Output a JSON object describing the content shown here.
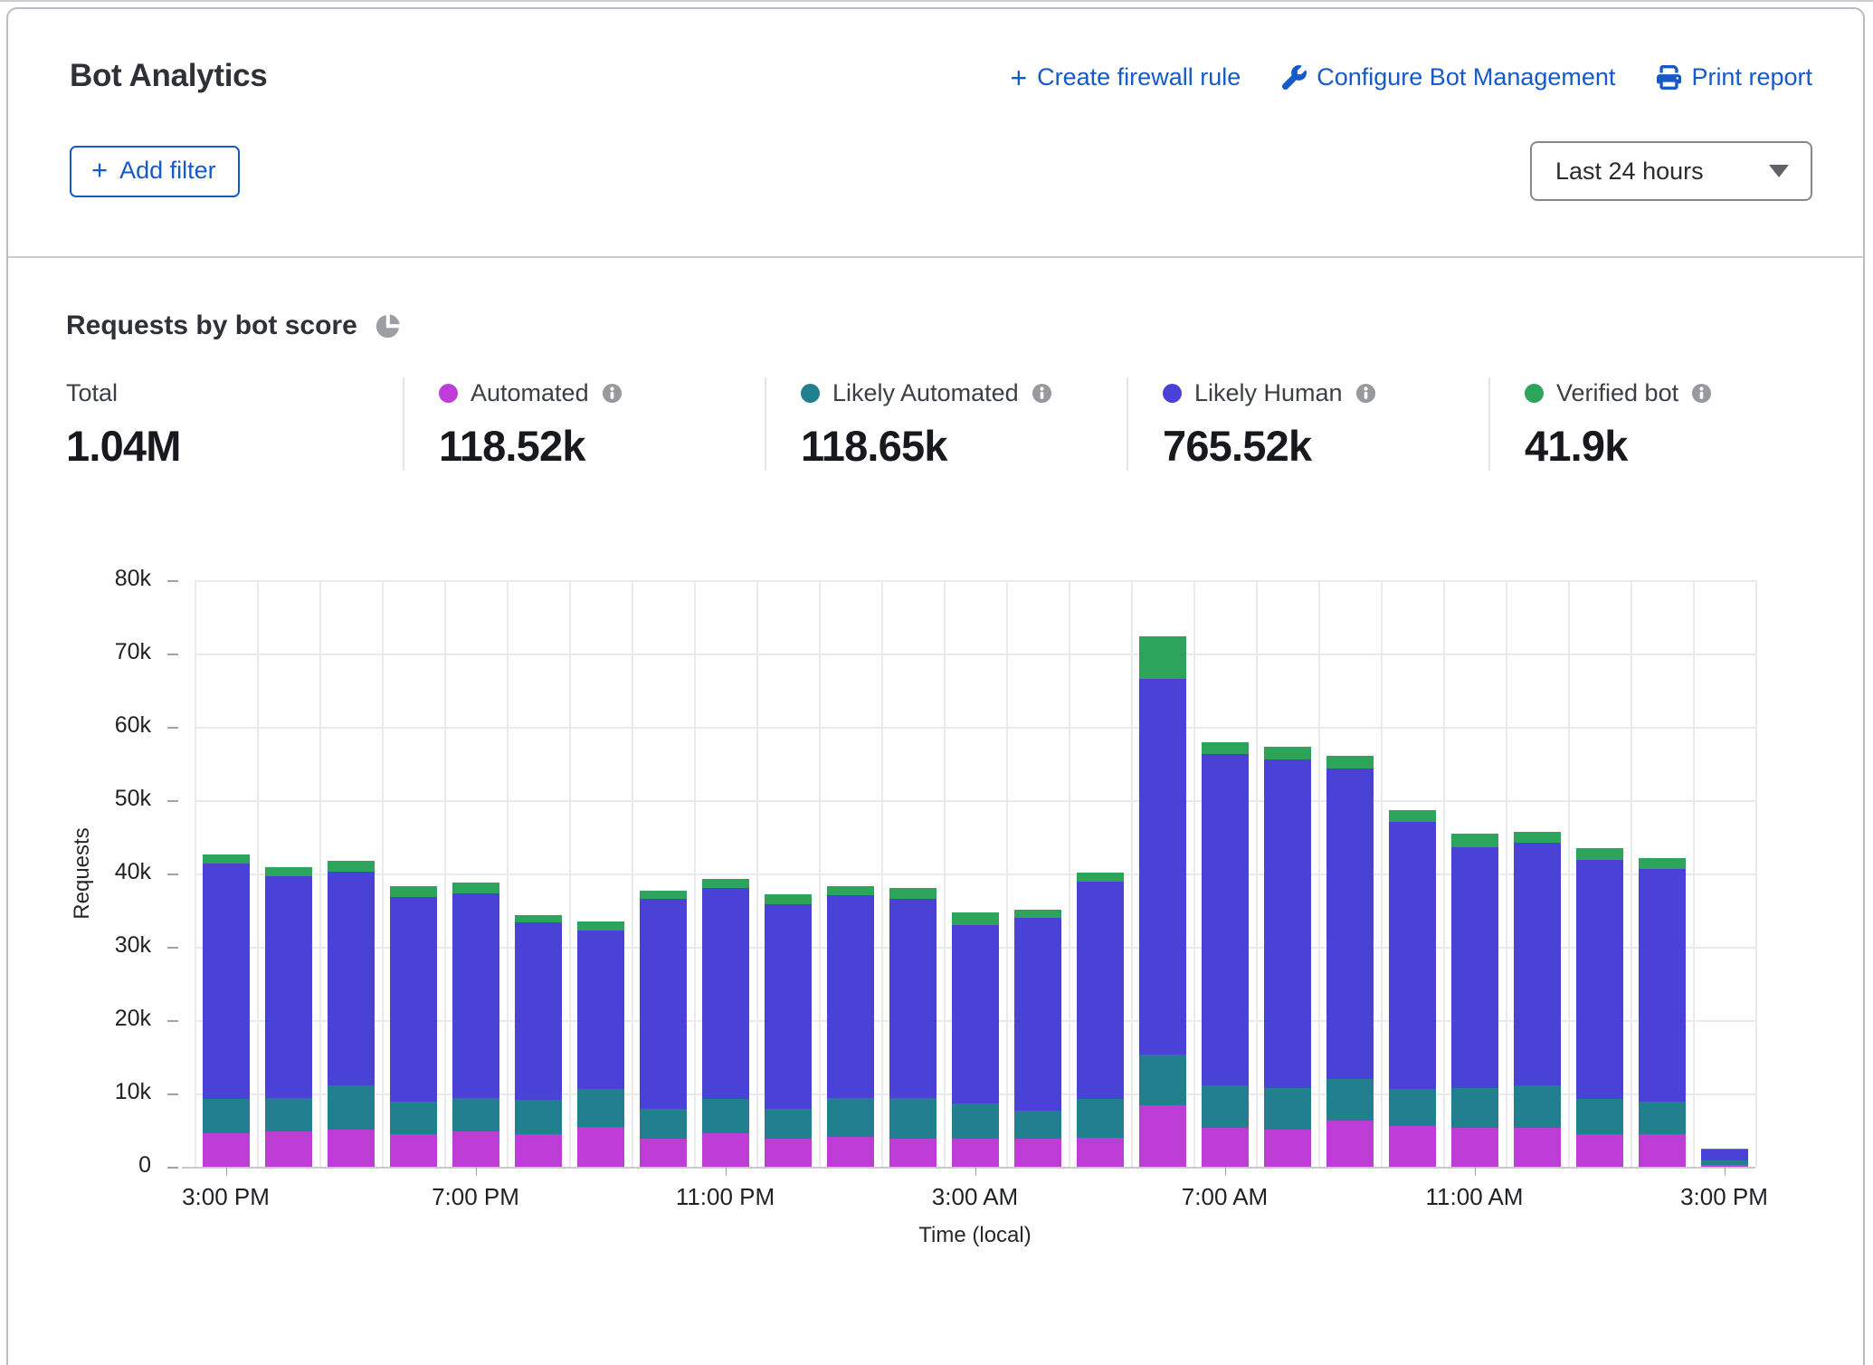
{
  "header": {
    "title": "Bot Analytics",
    "actions": [
      {
        "label": "Create firewall rule",
        "icon": "plus-icon"
      },
      {
        "label": "Configure Bot Management",
        "icon": "wrench-icon"
      },
      {
        "label": "Print report",
        "icon": "printer-icon"
      }
    ],
    "add_filter_label": "Add filter",
    "time_range_value": "Last 24 hours"
  },
  "section": {
    "title": "Requests by bot score"
  },
  "stats": {
    "total": {
      "label": "Total",
      "value": "1.04M"
    },
    "series": [
      {
        "label": "Automated",
        "value": "118.52k",
        "color": "#be3dd6"
      },
      {
        "label": "Likely Automated",
        "value": "118.65k",
        "color": "#227f90"
      },
      {
        "label": "Likely Human",
        "value": "765.52k",
        "color": "#4a42d6"
      },
      {
        "label": "Verified bot",
        "value": "41.9k",
        "color": "#2ca45c"
      }
    ]
  },
  "chart_data": {
    "type": "bar",
    "stacked": true,
    "title": "Requests by bot score",
    "xlabel": "Time (local)",
    "ylabel": "Requests",
    "ylim": [
      0,
      80000
    ],
    "grid": true,
    "y_ticks": [
      "0",
      "10k",
      "20k",
      "30k",
      "40k",
      "50k",
      "60k",
      "70k",
      "80k"
    ],
    "x_tick_labels": [
      "3:00 PM",
      "7:00 PM",
      "11:00 PM",
      "3:00 AM",
      "7:00 AM",
      "11:00 AM",
      "3:00 PM"
    ],
    "x_tick_bar_indexes": [
      0,
      4,
      8,
      12,
      16,
      20,
      24
    ],
    "categories": [
      "3:00 PM",
      "4:00 PM",
      "5:00 PM",
      "6:00 PM",
      "7:00 PM",
      "8:00 PM",
      "9:00 PM",
      "10:00 PM",
      "11:00 PM",
      "12:00 AM",
      "1:00 AM",
      "2:00 AM",
      "3:00 AM",
      "4:00 AM",
      "5:00 AM",
      "6:00 AM",
      "7:00 AM",
      "8:00 AM",
      "9:00 AM",
      "10:00 AM",
      "11:00 AM",
      "12:00 PM",
      "1:00 PM",
      "2:00 PM",
      "3:00 PM"
    ],
    "series": [
      {
        "name": "Automated",
        "color": "#be3dd6",
        "values": [
          4600,
          4800,
          5100,
          4500,
          4800,
          4500,
          5400,
          3800,
          4600,
          3800,
          4100,
          3800,
          3800,
          3800,
          4000,
          8400,
          5300,
          5100,
          6300,
          5600,
          5300,
          5300,
          4500,
          4500,
          250
        ]
      },
      {
        "name": "Likely Automated",
        "color": "#227f90",
        "values": [
          4600,
          4600,
          6000,
          4400,
          4600,
          4600,
          5200,
          4100,
          4600,
          4100,
          5300,
          5600,
          4900,
          3800,
          5200,
          6900,
          5800,
          5600,
          5700,
          5000,
          5400,
          5800,
          4700,
          4400,
          600
        ]
      },
      {
        "name": "Likely Human",
        "color": "#4a42d6",
        "values": [
          32100,
          30200,
          29200,
          27900,
          27900,
          24200,
          21600,
          28600,
          28800,
          27900,
          27600,
          27200,
          24300,
          26400,
          29700,
          51200,
          45200,
          44900,
          42300,
          36400,
          32900,
          33100,
          32700,
          31700,
          1450
        ]
      },
      {
        "name": "Verified bot",
        "color": "#2ca45c",
        "values": [
          1300,
          1300,
          1400,
          1500,
          1500,
          1000,
          1200,
          1200,
          1300,
          1300,
          1300,
          1400,
          1700,
          1100,
          1200,
          5800,
          1600,
          1700,
          1800,
          1700,
          1800,
          1500,
          1500,
          1500,
          150
        ]
      }
    ],
    "legend_position": "top"
  }
}
